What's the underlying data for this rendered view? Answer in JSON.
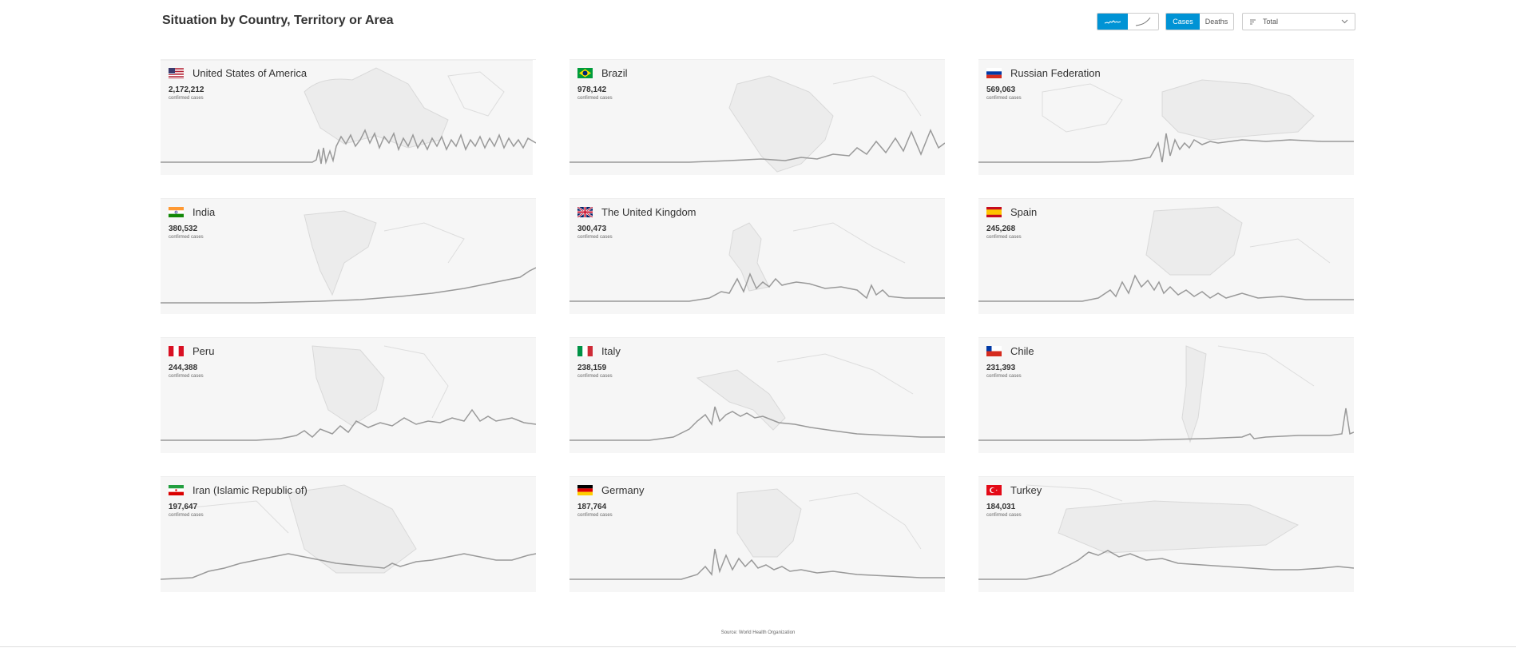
{
  "header": {
    "title": "Situation by Country, Territory or Area",
    "metric_cases": "Cases",
    "metric_deaths": "Deaths",
    "select_value": "Total",
    "accent_color": "#0093d5"
  },
  "cards": [
    {
      "name": "United States of America",
      "value": "2,172,212",
      "unit": "confirmed cases",
      "flag": "us-flag"
    },
    {
      "name": "Brazil",
      "value": "978,142",
      "unit": "confirmed cases",
      "flag": "br-flag"
    },
    {
      "name": "Russian Federation",
      "value": "569,063",
      "unit": "confirmed cases",
      "flag": "ru-flag"
    },
    {
      "name": "India",
      "value": "380,532",
      "unit": "confirmed cases",
      "flag": "in-flag"
    },
    {
      "name": "The United Kingdom",
      "value": "300,473",
      "unit": "confirmed cases",
      "flag": "gb-flag"
    },
    {
      "name": "Spain",
      "value": "245,268",
      "unit": "confirmed cases",
      "flag": "es-flag"
    },
    {
      "name": "Peru",
      "value": "244,388",
      "unit": "confirmed cases",
      "flag": "pe-flag"
    },
    {
      "name": "Italy",
      "value": "238,159",
      "unit": "confirmed cases",
      "flag": "it-flag"
    },
    {
      "name": "Chile",
      "value": "231,393",
      "unit": "confirmed cases",
      "flag": "cl-flag"
    },
    {
      "name": "Iran (Islamic Republic of)",
      "value": "197,647",
      "unit": "confirmed cases",
      "flag": "ir-flag"
    },
    {
      "name": "Germany",
      "value": "187,764",
      "unit": "confirmed cases",
      "flag": "de-flag"
    },
    {
      "name": "Turkey",
      "value": "184,031",
      "unit": "confirmed cases",
      "flag": "tr-flag"
    }
  ],
  "footer": {
    "source": "Source: World Health Organization"
  }
}
